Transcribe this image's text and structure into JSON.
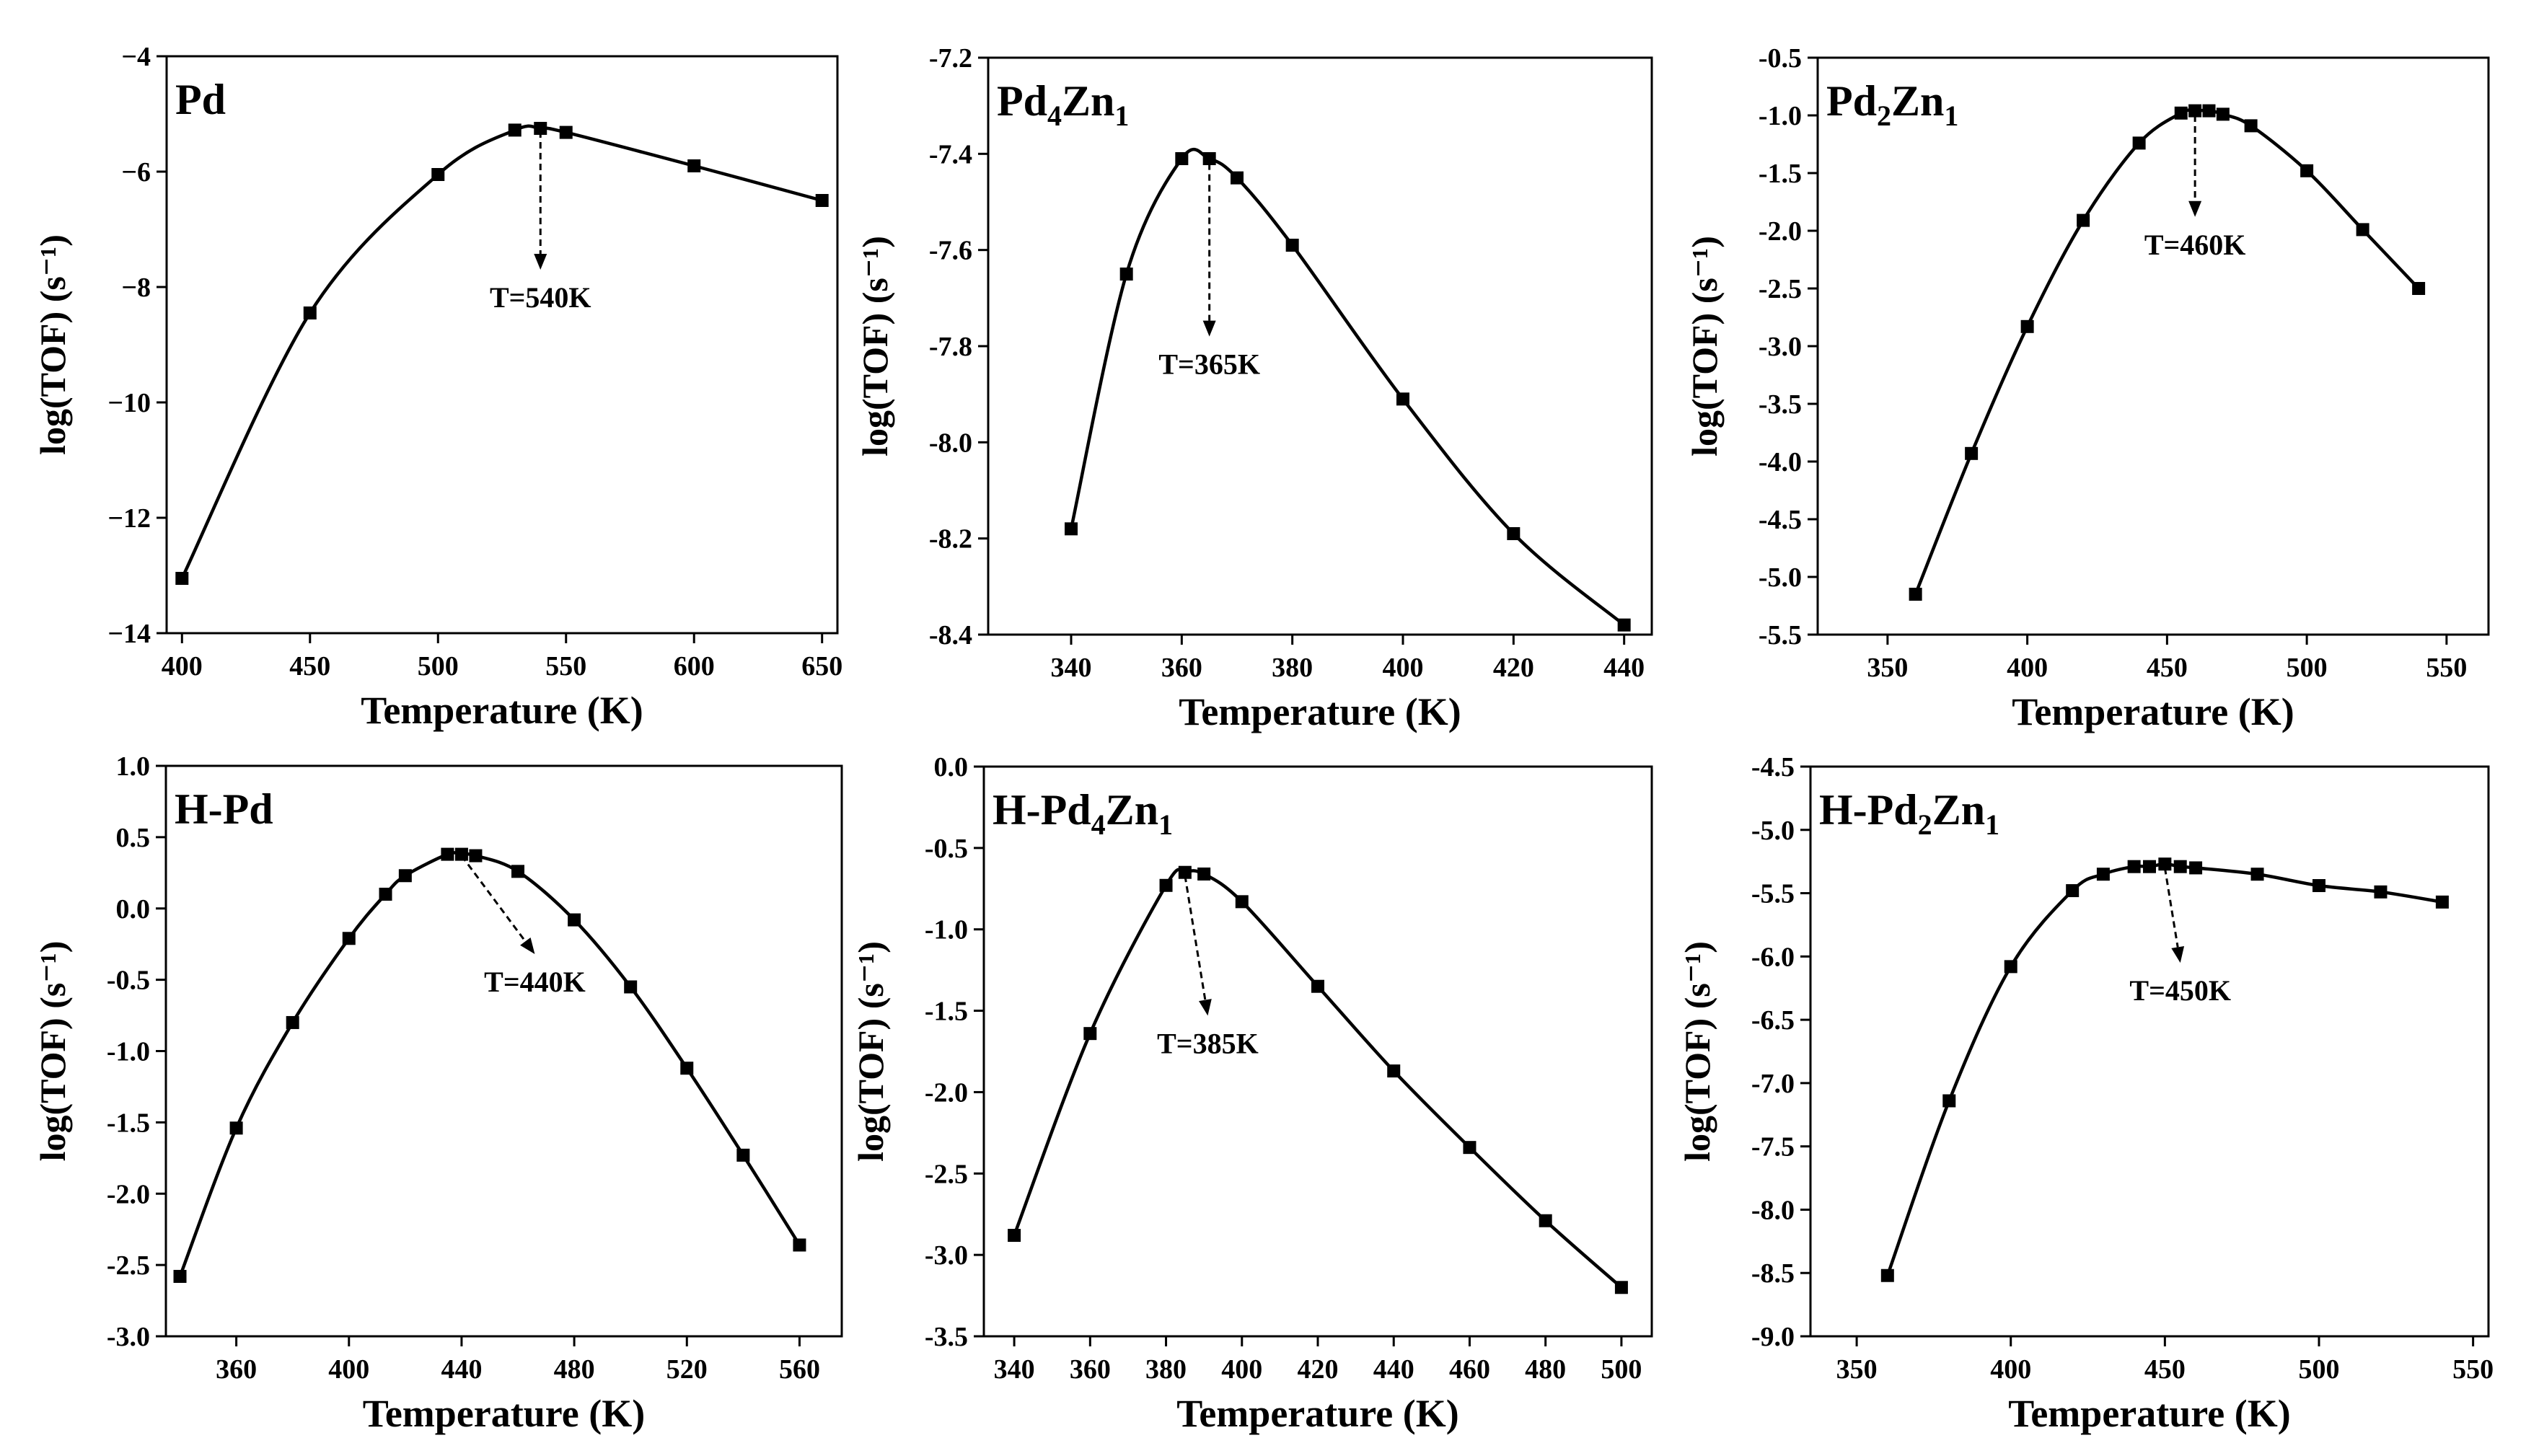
{
  "figure": {
    "background": "#ffffff",
    "line_color": "#000000"
  },
  "chart_data": [
    {
      "type": "line",
      "panel_label": "Pd",
      "title_parts": [
        {
          "t": "Pd"
        }
      ],
      "xlabel": "Temperature (K)",
      "ylabel": "log(TOF) (s⁻¹)",
      "xlim": [
        394,
        656
      ],
      "ylim": [
        -14,
        -4
      ],
      "xticks": [
        400,
        450,
        500,
        550,
        600,
        650
      ],
      "xtick_labels": [
        "400",
        "450",
        "500",
        "550",
        "600",
        "650"
      ],
      "yticks": [
        -14,
        -12,
        -10,
        -8,
        -6,
        -4
      ],
      "ytick_labels": [
        "−14",
        "−12",
        "−10",
        "−8",
        "−6",
        "−4"
      ],
      "series": [
        {
          "name": "Pd",
          "x": [
            400,
            450,
            500,
            530,
            540,
            550,
            600,
            650
          ],
          "y": [
            -13.05,
            -8.45,
            -6.05,
            -5.28,
            -5.25,
            -5.32,
            -5.9,
            -6.5
          ]
        }
      ],
      "annotation": {
        "text": "T=540K",
        "x": 540,
        "y_start": -5.3,
        "y_end": -7.7
      }
    },
    {
      "type": "line",
      "panel_label": "Pd4Zn1",
      "title_parts": [
        {
          "t": "Pd"
        },
        {
          "t": "4",
          "sub": true
        },
        {
          "t": "Zn"
        },
        {
          "t": "1",
          "sub": true
        }
      ],
      "xlabel": "Temperature (K)",
      "ylabel": "log(TOF) (s⁻¹)",
      "xlim": [
        325,
        445
      ],
      "ylim": [
        -8.4,
        -7.2
      ],
      "xticks": [
        340,
        360,
        380,
        400,
        420,
        440
      ],
      "xtick_labels": [
        "340",
        "360",
        "380",
        "400",
        "420",
        "440"
      ],
      "yticks": [
        -8.4,
        -8.2,
        -8.0,
        -7.8,
        -7.6,
        -7.4,
        -7.2
      ],
      "ytick_labels": [
        "-8.4",
        "-8.2",
        "-8.0",
        "-7.8",
        "-7.6",
        "-7.4",
        "-7.2"
      ],
      "series": [
        {
          "name": "Pd4Zn1",
          "x": [
            340,
            350,
            360,
            365,
            370,
            380,
            400,
            420,
            440
          ],
          "y": [
            -8.18,
            -7.65,
            -7.41,
            -7.41,
            -7.45,
            -7.59,
            -7.91,
            -8.19,
            -8.38
          ]
        }
      ],
      "annotation": {
        "text": "T=365K",
        "x": 365,
        "y_start": -7.42,
        "y_end": -7.78
      }
    },
    {
      "type": "line",
      "panel_label": "Pd2Zn1",
      "title_parts": [
        {
          "t": "Pd"
        },
        {
          "t": "2",
          "sub": true
        },
        {
          "t": "Zn"
        },
        {
          "t": "1",
          "sub": true
        }
      ],
      "xlabel": "Temperature (K)",
      "ylabel": "log(TOF) (s⁻¹)",
      "xlim": [
        325,
        565
      ],
      "ylim": [
        -5.5,
        -0.5
      ],
      "xticks": [
        350,
        400,
        450,
        500,
        550
      ],
      "xtick_labels": [
        "350",
        "400",
        "450",
        "500",
        "550"
      ],
      "yticks": [
        -5.5,
        -5.0,
        -4.5,
        -4.0,
        -3.5,
        -3.0,
        -2.5,
        -2.0,
        -1.5,
        -1.0,
        -0.5
      ],
      "ytick_labels": [
        "-5.5",
        "-5.0",
        "-4.5",
        "-4.0",
        "-3.5",
        "-3.0",
        "-2.5",
        "-2.0",
        "-1.5",
        "-1.0",
        "-0.5"
      ],
      "series": [
        {
          "name": "Pd2Zn1",
          "x": [
            360,
            380,
            400,
            420,
            440,
            455,
            460,
            465,
            470,
            480,
            500,
            520,
            540
          ],
          "y": [
            -5.15,
            -3.93,
            -2.83,
            -1.91,
            -1.24,
            -0.98,
            -0.96,
            -0.96,
            -0.99,
            -1.09,
            -1.48,
            -1.99,
            -2.5
          ]
        }
      ],
      "annotation": {
        "text": "T=460K",
        "x": 460,
        "y_start": -1.0,
        "y_end": -1.88
      }
    },
    {
      "type": "line",
      "panel_label": "H-Pd",
      "title_parts": [
        {
          "t": "H-Pd"
        }
      ],
      "xlabel": "Temperature (K)",
      "ylabel": "log(TOF) (s⁻¹)",
      "xlim": [
        335,
        575
      ],
      "ylim": [
        -3.0,
        1.0
      ],
      "xticks": [
        360,
        400,
        440,
        480,
        520,
        560
      ],
      "xtick_labels": [
        "360",
        "400",
        "440",
        "480",
        "520",
        "560"
      ],
      "yticks": [
        -3.0,
        -2.5,
        -2.0,
        -1.5,
        -1.0,
        -0.5,
        0.0,
        0.5,
        1.0
      ],
      "ytick_labels": [
        "-3.0",
        "-2.5",
        "-2.0",
        "-1.5",
        "-1.0",
        "-0.5",
        "0.0",
        "0.5",
        "1.0"
      ],
      "series": [
        {
          "name": "H-Pd",
          "x": [
            340,
            360,
            380,
            400,
            413,
            420,
            435,
            440,
            445,
            460,
            480,
            500,
            520,
            540,
            560
          ],
          "y": [
            -2.58,
            -1.54,
            -0.8,
            -0.21,
            0.1,
            0.23,
            0.38,
            0.38,
            0.37,
            0.26,
            -0.08,
            -0.55,
            -1.12,
            -1.73,
            -2.36
          ]
        }
      ],
      "annotation": {
        "text": "T=440K",
        "x0": 440,
        "y0": 0.37,
        "x1": 466,
        "y1": -0.32
      }
    },
    {
      "type": "line",
      "panel_label": "H-Pd4Zn1",
      "title_parts": [
        {
          "t": "H-Pd"
        },
        {
          "t": "4",
          "sub": true
        },
        {
          "t": "Zn"
        },
        {
          "t": "1",
          "sub": true
        }
      ],
      "xlabel": "Temperature (K)",
      "ylabel": "log(TOF) (s⁻¹)",
      "xlim": [
        332,
        508
      ],
      "ylim": [
        -3.5,
        0.0
      ],
      "xticks": [
        340,
        360,
        380,
        400,
        420,
        440,
        460,
        480,
        500
      ],
      "xtick_labels": [
        "340",
        "360",
        "380",
        "400",
        "420",
        "440",
        "460",
        "480",
        "500"
      ],
      "yticks": [
        -3.5,
        -3.0,
        -2.5,
        -2.0,
        -1.5,
        -1.0,
        -0.5,
        0.0
      ],
      "ytick_labels": [
        "-3.5",
        "-3.0",
        "-2.5",
        "-2.0",
        "-1.5",
        "-1.0",
        "-0.5",
        "0.0"
      ],
      "series": [
        {
          "name": "H-Pd4Zn1",
          "x": [
            340,
            360,
            380,
            385,
            390,
            400,
            420,
            440,
            460,
            480,
            500
          ],
          "y": [
            -2.88,
            -1.64,
            -0.73,
            -0.65,
            -0.66,
            -0.83,
            -1.35,
            -1.87,
            -2.34,
            -2.79,
            -3.2
          ]
        }
      ],
      "annotation": {
        "text": "T=385K",
        "x0": 385,
        "y0": -0.67,
        "x1": 391,
        "y1": -1.53
      }
    },
    {
      "type": "line",
      "panel_label": "H-Pd2Zn1",
      "title_parts": [
        {
          "t": "H-Pd"
        },
        {
          "t": "2",
          "sub": true
        },
        {
          "t": "Zn"
        },
        {
          "t": "1",
          "sub": true
        }
      ],
      "xlabel": "Temperature (K)",
      "ylabel": "log(TOF) (s⁻¹)",
      "xlim": [
        335,
        555
      ],
      "ylim": [
        -9.0,
        -4.5
      ],
      "xticks": [
        350,
        400,
        450,
        500,
        550
      ],
      "xtick_labels": [
        "350",
        "400",
        "450",
        "500",
        "550"
      ],
      "yticks": [
        -9.0,
        -8.5,
        -8.0,
        -7.5,
        -7.0,
        -6.5,
        -6.0,
        -5.5,
        -5.0,
        -4.5
      ],
      "ytick_labels": [
        "-9.0",
        "-8.5",
        "-8.0",
        "-7.5",
        "-7.0",
        "-6.5",
        "-6.0",
        "-5.5",
        "-5.0",
        "-4.5"
      ],
      "series": [
        {
          "name": "H-Pd2Zn1",
          "x": [
            360,
            380,
            400,
            420,
            430,
            440,
            445,
            450,
            455,
            460,
            480,
            500,
            520,
            540
          ],
          "y": [
            -8.52,
            -7.14,
            -6.08,
            -5.48,
            -5.35,
            -5.29,
            -5.29,
            -5.27,
            -5.29,
            -5.3,
            -5.35,
            -5.44,
            -5.49,
            -5.57
          ]
        }
      ],
      "annotation": {
        "text": "T=450K",
        "x0": 450,
        "y0": -5.3,
        "x1": 455,
        "y1": -6.05
      }
    }
  ]
}
